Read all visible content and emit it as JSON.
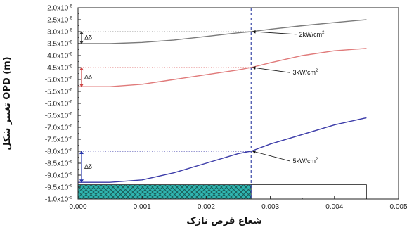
{
  "chart_data": {
    "type": "line",
    "title": "",
    "xlabel": "شعاع قرص نازک",
    "ylabel": "تغییر شکل OPD (m)",
    "xlim": [
      0,
      0.005
    ],
    "ylim": [
      -1e-05,
      -2e-06
    ],
    "x_ticks": [
      0.0,
      0.001,
      0.002,
      0.003,
      0.004,
      0.005
    ],
    "x_tick_labels": [
      "0.000",
      "0.001",
      "0.002",
      "0.003",
      "0.004",
      "0.005"
    ],
    "y_ticks": [
      -1e-05,
      -9.5e-06,
      -9e-06,
      -8.5e-06,
      -8e-06,
      -7.5e-06,
      -7e-06,
      -6.5e-06,
      -6e-06,
      -5.5e-06,
      -5e-06,
      -4.5e-06,
      -4e-06,
      -3.5e-06,
      -3e-06,
      -2.5e-06,
      -2e-06
    ],
    "y_tick_labels": [
      {
        "mant": "-1.0x10",
        "exp": "-5"
      },
      {
        "mant": "-9.5x10",
        "exp": "-6"
      },
      {
        "mant": "-9.0x10",
        "exp": "-6"
      },
      {
        "mant": "-8.5x10",
        "exp": "-6"
      },
      {
        "mant": "-8.0x10",
        "exp": "-6"
      },
      {
        "mant": "-7.5x10",
        "exp": "-6"
      },
      {
        "mant": "-7.0x10",
        "exp": "-6"
      },
      {
        "mant": "-6.5x10",
        "exp": "-6"
      },
      {
        "mant": "-6.0x10",
        "exp": "-6"
      },
      {
        "mant": "-5.5x10",
        "exp": "-6"
      },
      {
        "mant": "-5.0x10",
        "exp": "-6"
      },
      {
        "mant": "-4.5x10",
        "exp": "-6"
      },
      {
        "mant": "-4.0x10",
        "exp": "-6"
      },
      {
        "mant": "-3.5x10",
        "exp": "-6"
      },
      {
        "mant": "-3.0x10",
        "exp": "-6"
      },
      {
        "mant": "-2.5x10",
        "exp": "-6"
      },
      {
        "mant": "-2.0x10",
        "exp": "-6"
      }
    ],
    "series": [
      {
        "name": "2kW/cm²",
        "color": "#7a7a7a",
        "x": [
          0.0,
          0.0005,
          0.001,
          0.0015,
          0.002,
          0.0025,
          0.0027,
          0.003,
          0.0035,
          0.004,
          0.0045
        ],
        "y": [
          -3.5e-06,
          -3.5e-06,
          -3.45e-06,
          -3.35e-06,
          -3.2e-06,
          -3.05e-06,
          -3e-06,
          -2.9e-06,
          -2.75e-06,
          -2.62e-06,
          -2.5e-06
        ]
      },
      {
        "name": "3kW/cm²",
        "color": "#e07a7a",
        "x": [
          0.0,
          0.0005,
          0.001,
          0.0015,
          0.002,
          0.0025,
          0.0027,
          0.003,
          0.0035,
          0.004,
          0.0045
        ],
        "y": [
          -5.3e-06,
          -5.3e-06,
          -5.2e-06,
          -5e-06,
          -4.8e-06,
          -4.6e-06,
          -4.5e-06,
          -4.3e-06,
          -4e-06,
          -3.8e-06,
          -3.7e-06
        ]
      },
      {
        "name": "5kW/cm²",
        "color": "#3a3aa8",
        "x": [
          0.0,
          0.0005,
          0.001,
          0.0015,
          0.002,
          0.0025,
          0.0027,
          0.003,
          0.0035,
          0.004,
          0.0045
        ],
        "y": [
          -9.3e-06,
          -9.3e-06,
          -9.2e-06,
          -8.9e-06,
          -8.5e-06,
          -8.1e-06,
          -8e-06,
          -7.7e-06,
          -7.3e-06,
          -6.9e-06,
          -6.6e-06
        ]
      }
    ],
    "vertical_marker": {
      "x": 0.0027,
      "color": "#2b3aa0",
      "style": "dashed"
    },
    "reference_lines": [
      {
        "y": -3e-06,
        "color": "#9a9a9a"
      },
      {
        "y": -4.5e-06,
        "color": "#e07a7a"
      },
      {
        "y": -8e-06,
        "color": "#3a3aa8"
      }
    ],
    "delta_label": "Δδ",
    "delta_markers": [
      {
        "y_from": -3.5e-06,
        "y_to": -3e-06,
        "color": "#333333"
      },
      {
        "y_from": -5.3e-06,
        "y_to": -4.5e-06,
        "color": "#cc4444"
      },
      {
        "y_from": -9.3e-06,
        "y_to": -8e-06,
        "color": "#2233aa"
      }
    ],
    "annotations": [
      {
        "label": "2kW/cm",
        "sup": "2",
        "point": {
          "x": 0.0027,
          "y": -3e-06
        },
        "text_pos": {
          "x": 0.00345,
          "y": -3.2e-06
        }
      },
      {
        "label": "3kW/cm",
        "sup": "2",
        "point": {
          "x": 0.0027,
          "y": -4.5e-06
        },
        "text_pos": {
          "x": 0.00335,
          "y": -4.8e-06
        }
      },
      {
        "label": "5kW/cm",
        "sup": "2",
        "point": {
          "x": 0.0027,
          "y": -8e-06
        },
        "text_pos": {
          "x": 0.00335,
          "y": -8.5e-06
        }
      }
    ],
    "regions": [
      {
        "x_from": 0.0,
        "x_to": 0.0027,
        "y_from": -1e-05,
        "y_to": -9.4e-06,
        "fill": "#2fb5b0",
        "pattern": "crosshatch"
      },
      {
        "x_from": 0.0027,
        "x_to": 0.0045,
        "y_from": -1e-05,
        "y_to": -9.4e-06,
        "fill": "#ffffff",
        "pattern": "none"
      }
    ]
  }
}
